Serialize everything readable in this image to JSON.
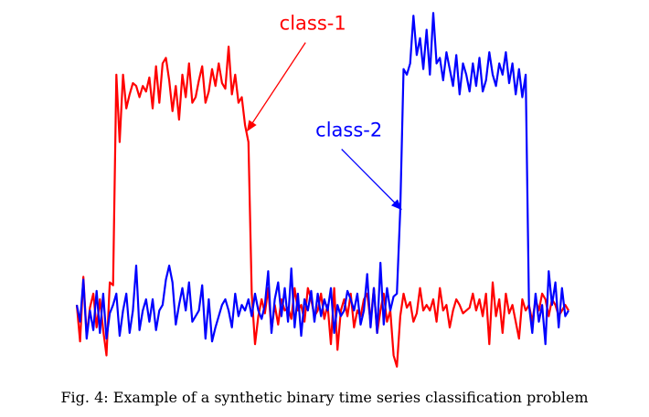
{
  "chart_data": {
    "type": "line",
    "title": "",
    "xlabel": "",
    "ylabel": "",
    "grid": false,
    "legend": "none",
    "xlim": [
      0,
      150
    ],
    "ylim": [
      -1.1,
      5.4
    ],
    "series": [
      {
        "color": "#ff0000",
        "values": [
          0.1,
          -0.55,
          0.6,
          -0.45,
          0.05,
          0.3,
          -0.3,
          0.2,
          -0.35,
          -0.8,
          0.5,
          0.45,
          4.2,
          3.0,
          4.2,
          3.6,
          3.85,
          4.05,
          4.0,
          3.8,
          4.0,
          3.9,
          4.15,
          3.6,
          4.35,
          3.7,
          4.4,
          4.5,
          4.1,
          3.55,
          4.0,
          3.4,
          4.2,
          3.8,
          4.4,
          3.7,
          3.8,
          4.1,
          4.35,
          3.7,
          3.9,
          4.3,
          4.0,
          4.4,
          4.05,
          3.95,
          4.7,
          3.85,
          4.2,
          3.7,
          3.8,
          3.3,
          3.0,
          0.3,
          -0.6,
          -0.1,
          0.2,
          -0.05,
          0.4,
          -0.35,
          0.1,
          -0.25,
          0.2,
          0.0,
          0.05,
          -0.15,
          0.4,
          0.0,
          0.1,
          -0.2,
          0.4,
          0.2,
          -0.1,
          0.0,
          0.3,
          -0.15,
          0.1,
          -0.6,
          0.4,
          -0.7,
          0.0,
          0.2,
          -0.1,
          0.3,
          -0.3,
          0.0,
          -0.1,
          0.2,
          0.3,
          -0.2,
          0.4,
          -0.4,
          0.0,
          0.3,
          -0.2,
          0.0,
          -0.8,
          -1.0,
          -0.1,
          0.3,
          0.05,
          0.15,
          -0.2,
          -0.05,
          0.4,
          0.0,
          0.1,
          0.0,
          0.2,
          -0.2,
          0.4,
          0.0,
          0.1,
          -0.3,
          0.0,
          0.2,
          0.1,
          -0.05,
          0.0,
          0.05,
          0.3,
          0.0,
          0.2,
          -0.1,
          0.3,
          -0.6,
          0.5,
          -0.1,
          0.2,
          -0.4,
          0.3,
          -0.05,
          0.1,
          -0.2,
          -0.5,
          0.2,
          0.0,
          0.1,
          -0.2,
          0.2,
          0.0,
          0.3,
          0.2,
          -0.1,
          0.2,
          0.1,
          -0.1,
          0.0,
          0.1,
          0.0
        ]
      },
      {
        "color": "#0000ff",
        "values": [
          0.1,
          -0.2,
          0.55,
          -0.5,
          0.0,
          -0.35,
          0.35,
          -0.4,
          0.3,
          -0.5,
          -0.05,
          0.1,
          0.3,
          -0.45,
          0.0,
          0.3,
          -0.4,
          0.0,
          0.8,
          -0.35,
          0.0,
          0.2,
          -0.2,
          0.2,
          -0.35,
          0.0,
          0.1,
          0.55,
          0.8,
          0.5,
          -0.25,
          0.1,
          0.4,
          0.0,
          0.5,
          -0.2,
          -0.1,
          0.0,
          0.45,
          -0.5,
          0.2,
          -0.55,
          -0.3,
          -0.1,
          0.1,
          0.2,
          0.0,
          -0.3,
          0.3,
          -0.1,
          0.1,
          0.0,
          0.2,
          -0.1,
          0.3,
          0.0,
          -0.15,
          0.1,
          0.7,
          -0.4,
          0.2,
          0.5,
          -0.1,
          0.4,
          -0.2,
          0.75,
          -0.3,
          0.3,
          -0.45,
          0.2,
          0.0,
          0.35,
          -0.2,
          0.3,
          -0.1,
          0.2,
          0.0,
          0.4,
          -0.4,
          0.1,
          -0.1,
          0.0,
          0.35,
          0.2,
          0.0,
          0.3,
          -0.25,
          0.0,
          0.65,
          -0.3,
          0.4,
          -0.4,
          0.85,
          -0.25,
          0.4,
          0.0,
          0.25,
          0.3,
          1.8,
          4.3,
          4.2,
          4.4,
          5.25,
          4.55,
          4.85,
          4.3,
          5.0,
          4.2,
          5.3,
          4.4,
          4.5,
          4.1,
          4.6,
          4.3,
          4.0,
          4.55,
          3.85,
          4.4,
          4.2,
          3.9,
          4.4,
          4.0,
          4.5,
          3.9,
          4.1,
          4.6,
          4.2,
          4.0,
          4.4,
          4.2,
          4.6,
          4.05,
          4.4,
          3.85,
          4.3,
          3.8,
          4.2,
          0.1,
          -0.4,
          0.3,
          -0.2,
          0.1,
          -0.6,
          0.7,
          0.1,
          0.5,
          -0.3,
          0.4,
          -0.1,
          0.0
        ]
      }
    ],
    "annotations": [
      {
        "text": "class-1",
        "color": "#ff0000",
        "x": 52,
        "y": 3.2,
        "text_x": 72,
        "text_y": 5.0
      },
      {
        "text": "class-2",
        "color": "#0000ff",
        "x": 99,
        "y": 1.8,
        "text_x": 83,
        "text_y": 3.1
      }
    ]
  },
  "caption": "Fig. 4: Example of a synthetic binary time series classification problem"
}
